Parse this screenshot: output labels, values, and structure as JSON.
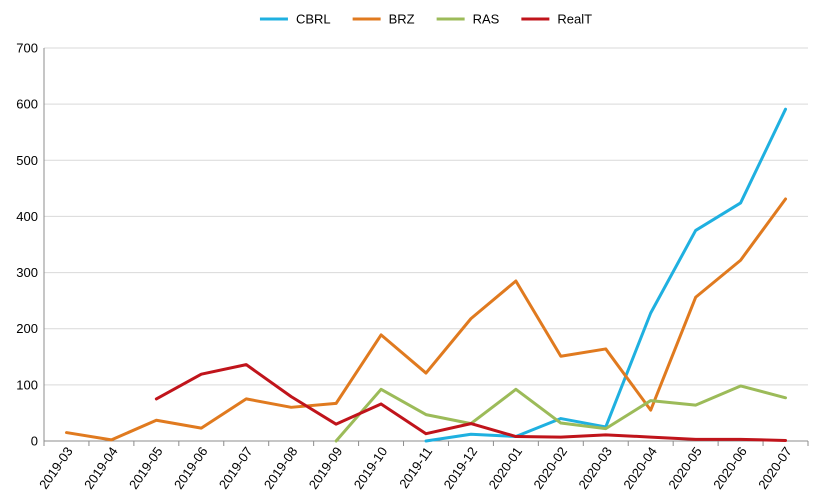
{
  "chart_data": {
    "type": "line",
    "title": "",
    "xlabel": "",
    "ylabel": "",
    "ylim": [
      0,
      700
    ],
    "yticks": [
      0,
      100,
      200,
      300,
      400,
      500,
      600,
      700
    ],
    "grid": "horizontal",
    "legend_position": "top-center",
    "categories": [
      "2019-03",
      "2019-04",
      "2019-05",
      "2019-06",
      "2019-07",
      "2019-08",
      "2019-09",
      "2019-10",
      "2019-11",
      "2019-12",
      "2020-01",
      "2020-02",
      "2020-03",
      "2020-04",
      "2020-05",
      "2020-06",
      "2020-07"
    ],
    "series": [
      {
        "name": "CBRL",
        "color": "#1fb0e0",
        "values": [
          null,
          null,
          null,
          null,
          null,
          null,
          null,
          null,
          0,
          12,
          8,
          40,
          25,
          228,
          375,
          424,
          591
        ]
      },
      {
        "name": "BRZ",
        "color": "#e07a1f",
        "values": [
          15,
          2,
          37,
          23,
          75,
          60,
          67,
          189,
          121,
          218,
          285,
          151,
          164,
          55,
          256,
          322,
          431
        ]
      },
      {
        "name": "RAS",
        "color": "#9cbb59",
        "values": [
          null,
          null,
          null,
          null,
          null,
          null,
          0,
          92,
          47,
          31,
          92,
          32,
          22,
          72,
          64,
          98,
          77
        ]
      },
      {
        "name": "RealT",
        "color": "#c0141b",
        "values": [
          null,
          null,
          75,
          119,
          136,
          79,
          30,
          66,
          13,
          31,
          8,
          7,
          11,
          7,
          3,
          3,
          1
        ]
      }
    ]
  }
}
